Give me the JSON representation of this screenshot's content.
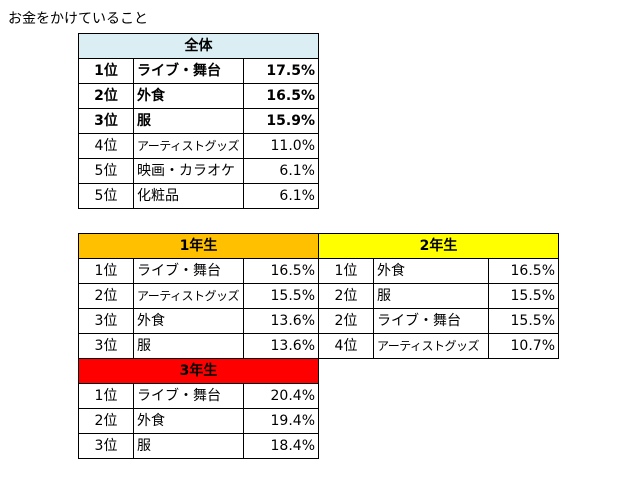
{
  "title": "お金をかけていること",
  "tables": [
    {
      "header": "全体",
      "color": "#daeef3",
      "rows": [
        [
          "1位",
          "ライブ・舞台",
          "17.5%"
        ],
        [
          "2位",
          "外食",
          "16.5%"
        ],
        [
          "3位",
          "服",
          "15.9%"
        ],
        [
          "4位",
          "アーティストグッズ",
          "11.0%"
        ],
        [
          "5位",
          "映画・カラオケ",
          "6.1%"
        ],
        [
          "5位",
          "化粧品",
          "6.1%"
        ]
      ]
    },
    {
      "header": "1年生",
      "color": "#ffc000",
      "rows": [
        [
          "1位",
          "ライブ・舞台",
          "16.5%"
        ],
        [
          "2位",
          "アーティストグッズ",
          "15.5%"
        ],
        [
          "3位",
          "外食",
          "13.6%"
        ],
        [
          "3位",
          "服",
          "13.6%"
        ]
      ]
    },
    {
      "header": "2年生",
      "color": "#ffff00",
      "rows": [
        [
          "1位",
          "外食",
          "16.5%"
        ],
        [
          "2位",
          "服",
          "15.5%"
        ],
        [
          "2位",
          "ライブ・舞台",
          "15.5%"
        ],
        [
          "4位",
          "アーティストグッズ",
          "10.7%"
        ]
      ]
    },
    {
      "header": "3年生",
      "color": "#ff0000",
      "rows": [
        [
          "1位",
          "ライブ・舞台",
          "20.4%"
        ],
        [
          "2位",
          "外食",
          "19.4%"
        ],
        [
          "3位",
          "服",
          "18.4%"
        ]
      ]
    }
  ]
}
